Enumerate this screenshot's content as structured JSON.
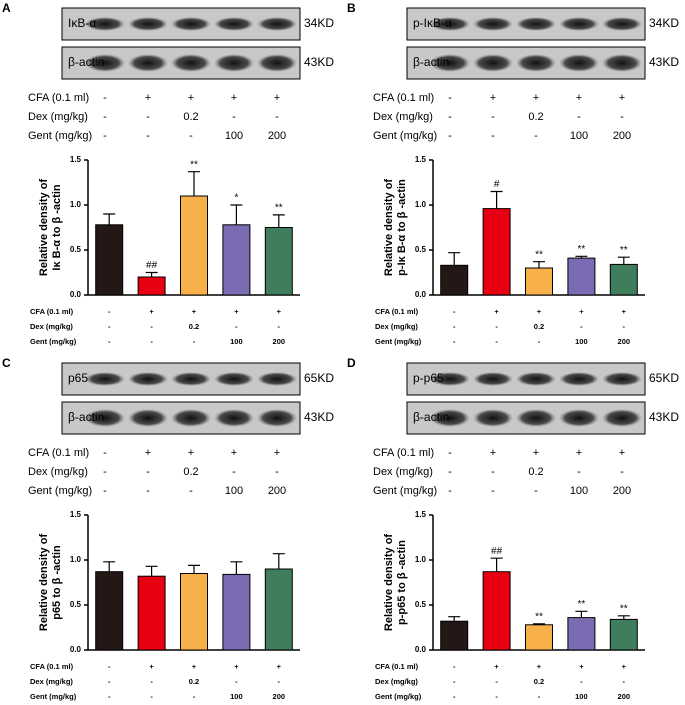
{
  "chart_data": [
    {
      "type": "bar",
      "panel": "A",
      "blots": [
        {
          "label": "IκB-α",
          "size": "34KD"
        },
        {
          "label": "β-actin",
          "size": "43KD"
        }
      ],
      "treatments": [
        {
          "name": "CFA (0.1 ml)",
          "values": [
            "-",
            "+",
            "+",
            "+",
            "+"
          ]
        },
        {
          "name": "Dex (mg/kg)",
          "values": [
            "-",
            "-",
            "0.2",
            "-",
            "-"
          ]
        },
        {
          "name": "Gent (mg/kg)",
          "values": [
            "-",
            "-",
            "-",
            "100",
            "200"
          ]
        }
      ],
      "ylabel": [
        "Relative density of",
        "Iκ B-α to β -actin"
      ],
      "values": [
        0.78,
        0.2,
        1.1,
        0.78,
        0.75
      ],
      "errors": [
        0.12,
        0.05,
        0.27,
        0.22,
        0.14
      ],
      "annotations": [
        null,
        "##",
        "**",
        "*",
        "**"
      ],
      "colors": [
        "#231815",
        "#e60012",
        "#f7b04a",
        "#7b6bb3",
        "#3f7d5c"
      ],
      "ylim": [
        0,
        1.5
      ],
      "yticks": [
        {
          "value": 0,
          "label": "0.0"
        },
        0.5,
        {
          "value": 1,
          "label": "1.0"
        },
        1.5
      ]
    },
    {
      "type": "bar",
      "panel": "B",
      "blots": [
        {
          "label": "p-IκB-α",
          "size": "34KD"
        },
        {
          "label": "β-actin",
          "size": "43KD"
        }
      ],
      "treatments": [
        {
          "name": "CFA (0.1 ml)",
          "values": [
            "-",
            "+",
            "+",
            "+",
            "+"
          ]
        },
        {
          "name": "Dex (mg/kg)",
          "values": [
            "-",
            "-",
            "0.2",
            "-",
            "-"
          ]
        },
        {
          "name": "Gent (mg/kg)",
          "values": [
            "-",
            "-",
            "-",
            "100",
            "200"
          ]
        }
      ],
      "ylabel": [
        "Relative density of",
        "p-Iκ B-α to β -actin"
      ],
      "values": [
        0.33,
        0.96,
        0.3,
        0.41,
        0.34
      ],
      "errors": [
        0.14,
        0.19,
        0.07,
        0.02,
        0.08
      ],
      "annotations": [
        null,
        "#",
        "**",
        "**",
        "**"
      ],
      "colors": [
        "#231815",
        "#e60012",
        "#f7b04a",
        "#7b6bb3",
        "#3f7d5c"
      ],
      "ylim": [
        0,
        1.5
      ],
      "yticks": [
        {
          "value": 0,
          "label": "0.0"
        },
        0.5,
        {
          "value": 1,
          "label": "1.0"
        },
        1.5
      ]
    },
    {
      "type": "bar",
      "panel": "C",
      "blots": [
        {
          "label": "p65",
          "size": "65KD"
        },
        {
          "label": "β-actin",
          "size": "43KD"
        }
      ],
      "treatments": [
        {
          "name": "CFA (0.1 ml)",
          "values": [
            "-",
            "+",
            "+",
            "+",
            "+"
          ]
        },
        {
          "name": "Dex (mg/kg)",
          "values": [
            "-",
            "-",
            "0.2",
            "-",
            "-"
          ]
        },
        {
          "name": "Gent (mg/kg)",
          "values": [
            "-",
            "-",
            "-",
            "100",
            "200"
          ]
        }
      ],
      "ylabel": [
        "Relative density of",
        "p65 to β -actin"
      ],
      "values": [
        0.87,
        0.82,
        0.85,
        0.84,
        0.9
      ],
      "errors": [
        0.11,
        0.11,
        0.09,
        0.14,
        0.17
      ],
      "annotations": [
        null,
        null,
        null,
        null,
        null
      ],
      "colors": [
        "#231815",
        "#e60012",
        "#f7b04a",
        "#7b6bb3",
        "#3f7d5c"
      ],
      "ylim": [
        0,
        1.5
      ],
      "yticks": [
        {
          "value": 0,
          "label": "0.0"
        },
        0.5,
        {
          "value": 1,
          "label": "1.0"
        },
        1.5
      ]
    },
    {
      "type": "bar",
      "panel": "D",
      "blots": [
        {
          "label": "p-p65",
          "size": "65KD"
        },
        {
          "label": "β-actin",
          "size": "43KD"
        }
      ],
      "treatments": [
        {
          "name": "CFA (0.1 ml)",
          "values": [
            "-",
            "+",
            "+",
            "+",
            "+"
          ]
        },
        {
          "name": "Dex (mg/kg)",
          "values": [
            "-",
            "-",
            "0.2",
            "-",
            "-"
          ]
        },
        {
          "name": "Gent (mg/kg)",
          "values": [
            "-",
            "-",
            "-",
            "100",
            "200"
          ]
        }
      ],
      "ylabel": [
        "Relative density of",
        "p-p65 to β -actin"
      ],
      "values": [
        0.32,
        0.87,
        0.28,
        0.36,
        0.34
      ],
      "errors": [
        0.05,
        0.15,
        0.01,
        0.07,
        0.04
      ],
      "annotations": [
        null,
        "##",
        "**",
        "**",
        "**"
      ],
      "colors": [
        "#231815",
        "#e60012",
        "#f7b04a",
        "#7b6bb3",
        "#3f7d5c"
      ],
      "ylim": [
        0,
        1.5
      ],
      "yticks": [
        {
          "value": 0,
          "label": "0.0"
        },
        0.5,
        {
          "value": 1,
          "label": "1.0"
        },
        1.5
      ]
    }
  ]
}
